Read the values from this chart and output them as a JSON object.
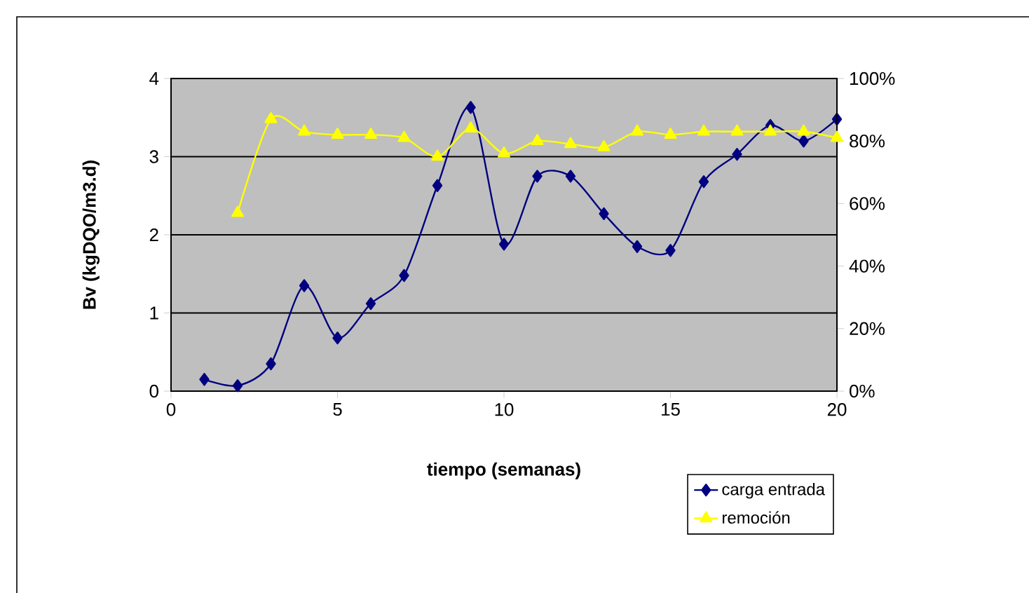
{
  "chart_data": {
    "type": "line",
    "xlabel": "tiempo (semanas)",
    "ylabel": "Bv (kgDQO/m3.d)",
    "xlim": [
      0,
      20
    ],
    "xticks": [
      0,
      5,
      10,
      15,
      20
    ],
    "ylim": [
      0,
      4
    ],
    "yticks": [
      0,
      1,
      2,
      3,
      4
    ],
    "y2lim": [
      0,
      100
    ],
    "y2ticks": [
      {
        "value": 0,
        "label": "0%"
      },
      {
        "value": 20,
        "label": "20%"
      },
      {
        "value": 40,
        "label": "40%"
      },
      {
        "value": 60,
        "label": "60%"
      },
      {
        "value": 80,
        "label": "80%"
      },
      {
        "value": 100,
        "label": "100%"
      }
    ],
    "grid": "y",
    "legend": "bottom right",
    "series": [
      {
        "name": "carga entrada",
        "color": "#000080",
        "marker": "diamond",
        "x": [
          1,
          2,
          3,
          4,
          5,
          6,
          7,
          8,
          9,
          10,
          11,
          12,
          13,
          14,
          15,
          16,
          17,
          18,
          19,
          20
        ],
        "values": [
          0.15,
          0.07,
          0.35,
          1.35,
          0.68,
          1.12,
          1.48,
          2.63,
          3.63,
          1.88,
          2.75,
          2.75,
          2.27,
          1.85,
          1.8,
          2.68,
          3.03,
          3.4,
          3.2,
          3.48
        ]
      },
      {
        "name": "remoción",
        "color": "#ffff00",
        "marker": "triangle",
        "axis": "y2",
        "x": [
          2,
          3,
          4,
          5,
          6,
          7,
          8,
          9,
          10,
          11,
          12,
          13,
          14,
          15,
          16,
          17,
          18,
          19,
          20
        ],
        "values": [
          57,
          87,
          83,
          82,
          82,
          81,
          75,
          84,
          76,
          80,
          79,
          78,
          83,
          82,
          83,
          83,
          83,
          83,
          81
        ]
      }
    ]
  }
}
